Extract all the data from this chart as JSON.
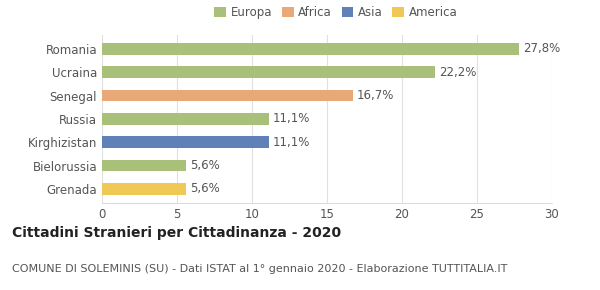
{
  "categories": [
    "Romania",
    "Ucraina",
    "Senegal",
    "Russia",
    "Kirghizistan",
    "Bielorussia",
    "Grenada"
  ],
  "values": [
    27.8,
    22.2,
    16.7,
    11.1,
    11.1,
    5.6,
    5.6
  ],
  "labels": [
    "27,8%",
    "22,2%",
    "16,7%",
    "11,1%",
    "11,1%",
    "5,6%",
    "5,6%"
  ],
  "bar_colors": [
    "#a8c07a",
    "#a8c07a",
    "#e8a878",
    "#a8c07a",
    "#6080b8",
    "#a8c07a",
    "#f0c855"
  ],
  "legend_entries": [
    "Europa",
    "Africa",
    "Asia",
    "America"
  ],
  "legend_colors": [
    "#a8c07a",
    "#e8a878",
    "#6080b8",
    "#f0c855"
  ],
  "xlim": [
    0,
    30
  ],
  "xticks": [
    0,
    5,
    10,
    15,
    20,
    25,
    30
  ],
  "title": "Cittadini Stranieri per Cittadinanza - 2020",
  "subtitle": "COMUNE DI SOLEMINIS (SU) - Dati ISTAT al 1° gennaio 2020 - Elaborazione TUTTITALIA.IT",
  "background_color": "#ffffff",
  "grid_color": "#e0e0e0",
  "bar_height": 0.5,
  "label_fontsize": 8.5,
  "tick_fontsize": 8.5,
  "title_fontsize": 10,
  "subtitle_fontsize": 8
}
